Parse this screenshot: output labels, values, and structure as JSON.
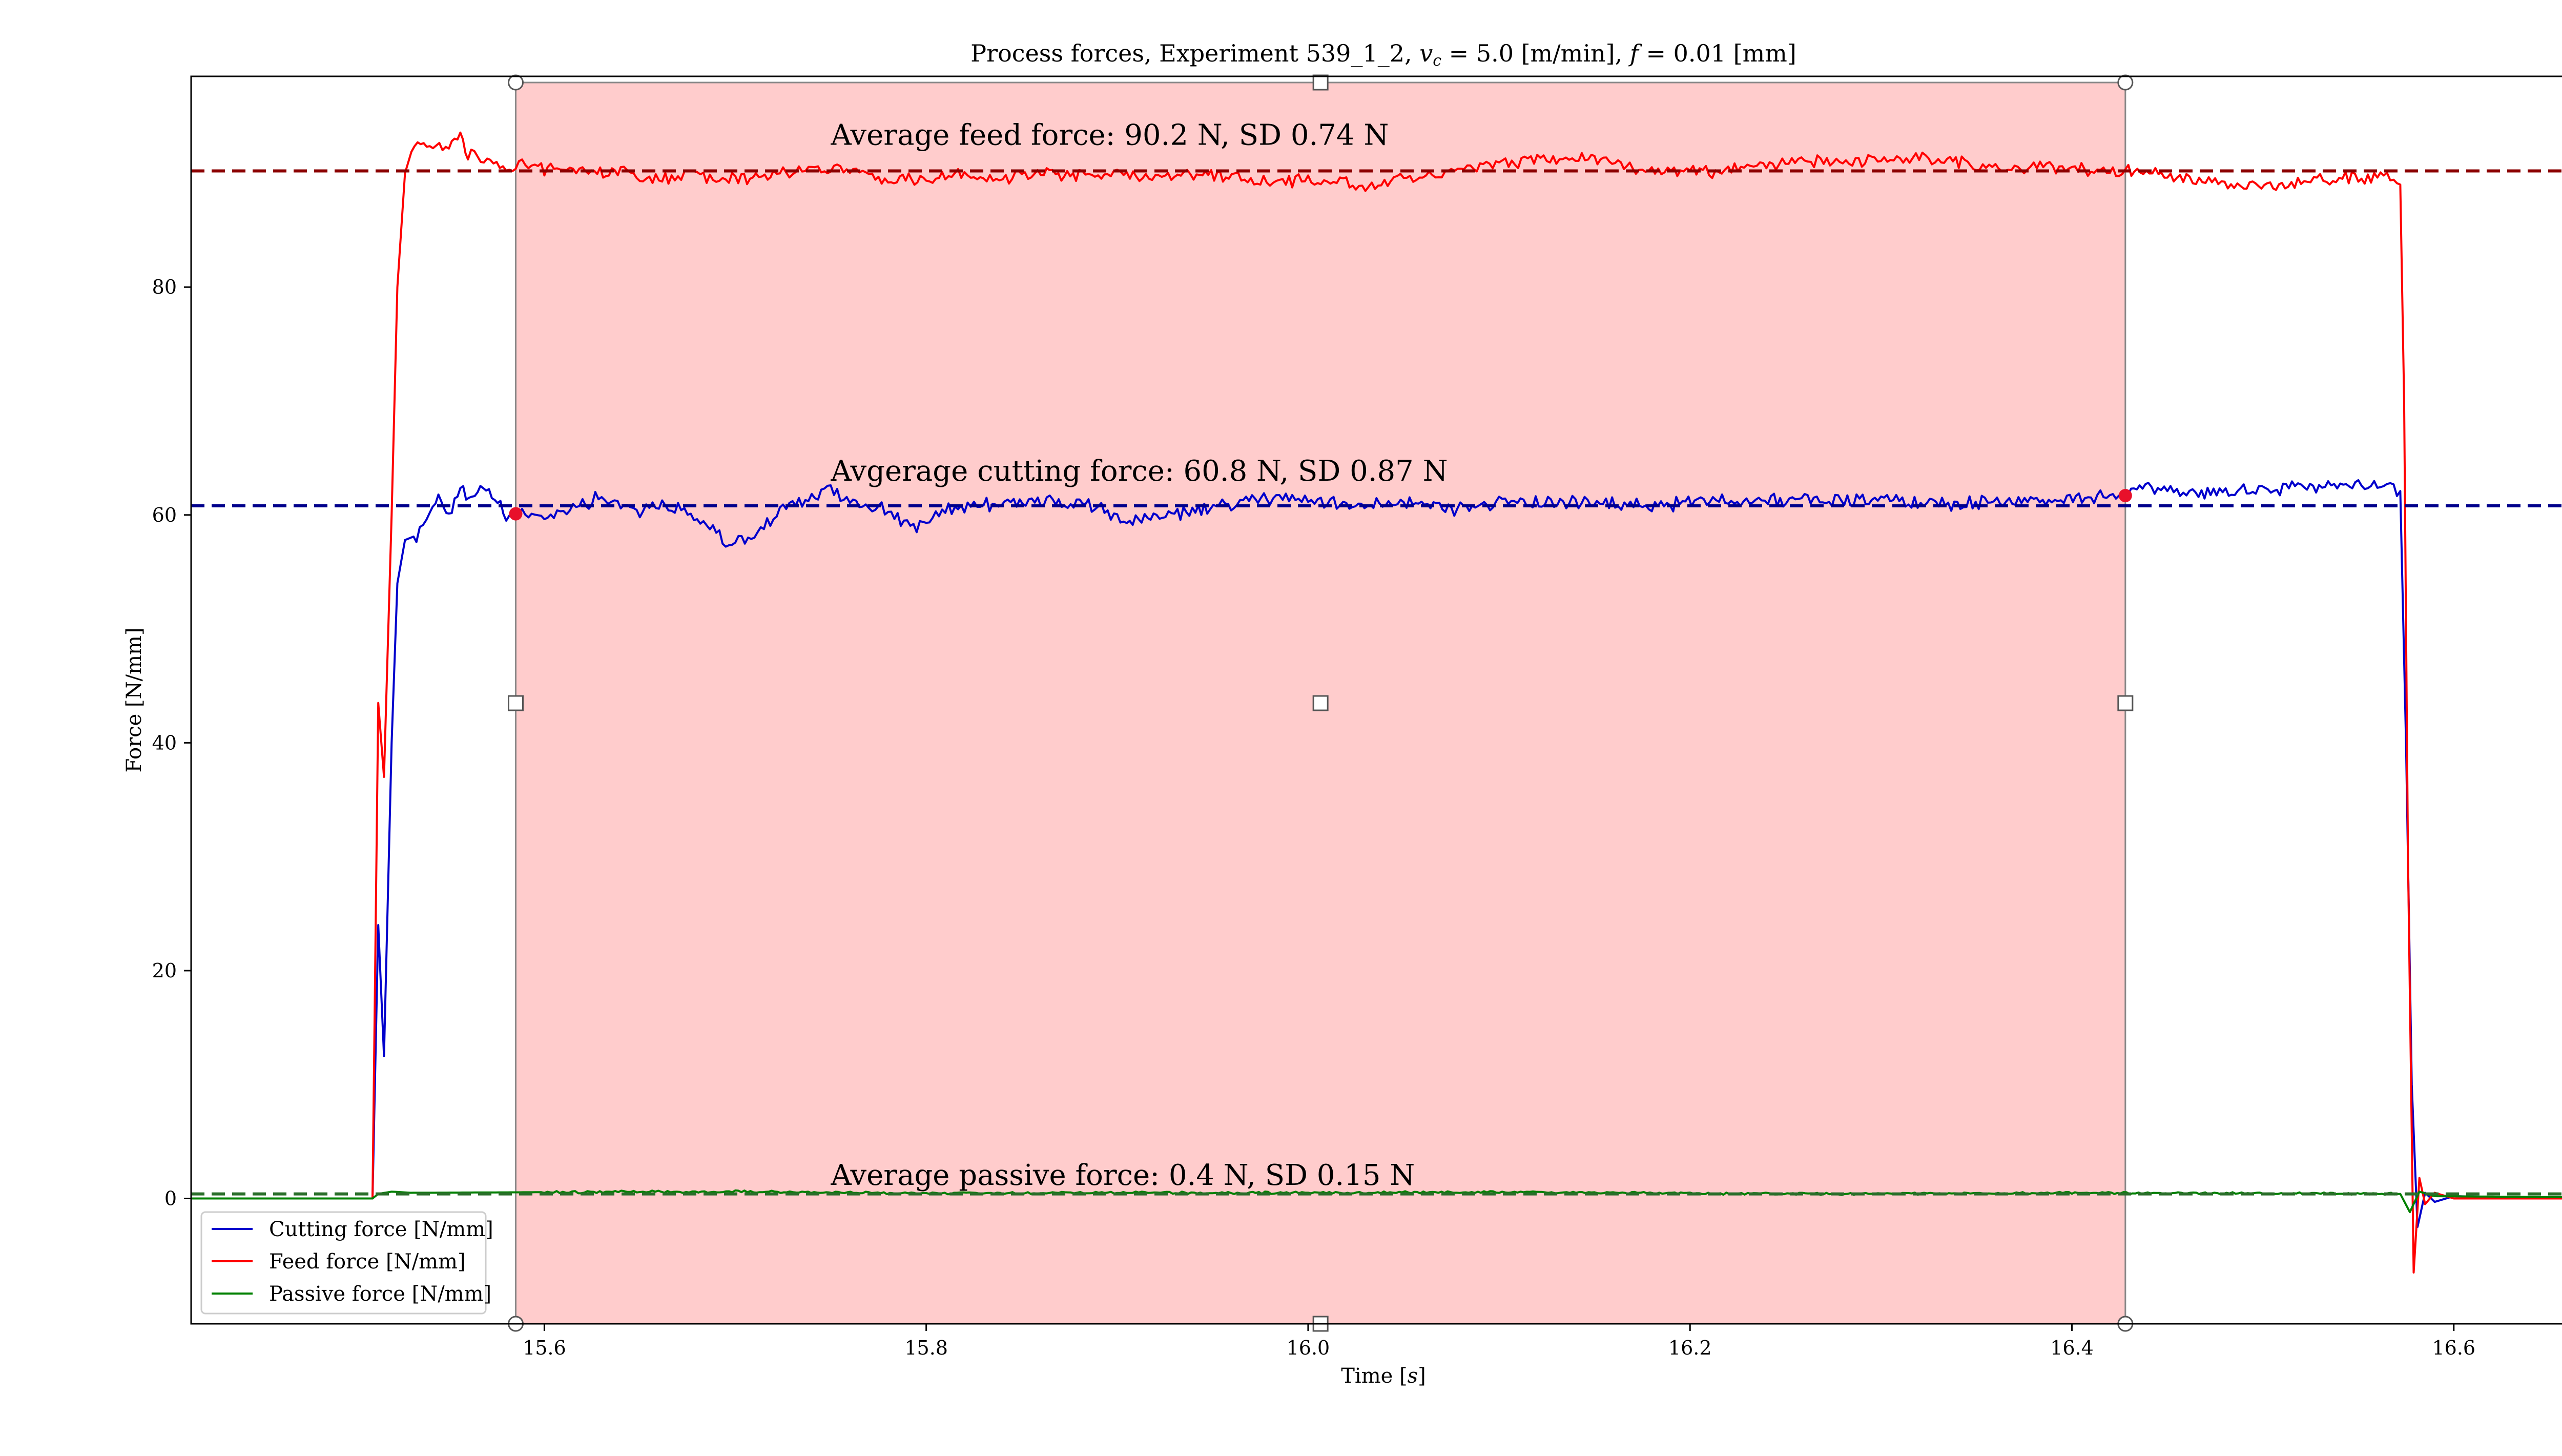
{
  "chart_data": {
    "type": "line",
    "title": "Process forces, Experiment 539_1_2, vₑ = 5.0 [m/min], f = 0.01 [mm]",
    "title_parts": {
      "prefix": "Process forces, Experiment 539_1_2, ",
      "vc_symbol": "v",
      "vc_subscript": "c",
      "vc_value": " = 5.0 [m/min], ",
      "f_symbol": "f",
      "f_value": " = 0.01 [mm]"
    },
    "xlabel": "Time [s]",
    "xlabel_parts": {
      "text": "Time [",
      "unit": "s",
      "close": "]"
    },
    "ylabel": "Force [N/mm]",
    "xlim": [
      15.415,
      16.665
    ],
    "ylim": [
      -11,
      98.5
    ],
    "x_ticks": [
      15.6,
      15.8,
      16.0,
      16.2,
      16.4,
      16.6
    ],
    "x_tick_labels": [
      "15.6",
      "15.8",
      "16.0",
      "16.2",
      "16.4",
      "16.6"
    ],
    "y_ticks": [
      0,
      20,
      40,
      60,
      80
    ],
    "y_tick_labels": [
      "0",
      "20",
      "40",
      "60",
      "80"
    ],
    "grid": false,
    "legend_position": "lower-left",
    "highlight_region": {
      "x_start": 15.585,
      "x_end": 16.428,
      "color": "#ff9a9a"
    },
    "colors": {
      "cutting": "#0000cc",
      "feed": "#ff0000",
      "passive": "#008000",
      "mean_cutting": "#00008b",
      "mean_feed": "#8b0000",
      "marker": "#e8102a"
    },
    "series": [
      {
        "key": "cutting",
        "name": "Cutting force [N/mm]",
        "color": "#0000cc",
        "mean": 60.8,
        "points": [
          [
            15.415,
            0
          ],
          [
            15.51,
            0
          ],
          [
            15.513,
            24
          ],
          [
            15.516,
            12.5
          ],
          [
            15.52,
            40
          ],
          [
            15.523,
            54
          ],
          [
            15.527,
            57.8
          ],
          [
            15.533,
            58.2
          ],
          [
            15.54,
            60.5
          ],
          [
            15.546,
            61.5
          ],
          [
            15.55,
            60
          ],
          [
            15.556,
            62.5
          ],
          [
            15.562,
            61
          ],
          [
            15.568,
            62.3
          ],
          [
            15.574,
            61.5
          ],
          [
            15.58,
            59.8
          ],
          [
            15.585,
            60.1
          ],
          [
            15.6,
            59.8
          ],
          [
            15.615,
            60.8
          ],
          [
            15.63,
            61.5
          ],
          [
            15.65,
            60.5
          ],
          [
            15.665,
            60.8
          ],
          [
            15.68,
            59.8
          ],
          [
            15.695,
            57.5
          ],
          [
            15.71,
            58.2
          ],
          [
            15.725,
            60.5
          ],
          [
            15.74,
            61.5
          ],
          [
            15.75,
            62.2
          ],
          [
            15.765,
            61
          ],
          [
            15.78,
            60.5
          ],
          [
            15.795,
            58.6
          ],
          [
            15.81,
            60.5
          ],
          [
            15.83,
            61
          ],
          [
            15.86,
            61.2
          ],
          [
            15.885,
            60.8
          ],
          [
            15.905,
            59.5
          ],
          [
            15.93,
            60
          ],
          [
            15.955,
            60.8
          ],
          [
            15.98,
            61.5
          ],
          [
            16.0,
            61.3
          ],
          [
            16.02,
            60.8
          ],
          [
            16.05,
            61.3
          ],
          [
            16.075,
            60.5
          ],
          [
            16.1,
            61.2
          ],
          [
            16.14,
            61
          ],
          [
            16.18,
            60.8
          ],
          [
            16.22,
            61.4
          ],
          [
            16.26,
            61.3
          ],
          [
            16.3,
            61.4
          ],
          [
            16.34,
            61
          ],
          [
            16.38,
            61.3
          ],
          [
            16.41,
            61.5
          ],
          [
            16.428,
            61.7
          ],
          [
            16.44,
            62.3
          ],
          [
            16.46,
            61.8
          ],
          [
            16.49,
            62.2
          ],
          [
            16.52,
            62.5
          ],
          [
            16.55,
            62.6
          ],
          [
            16.565,
            62.9
          ],
          [
            16.572,
            62.1
          ],
          [
            16.575,
            40
          ],
          [
            16.578,
            10
          ],
          [
            16.581,
            -2.5
          ],
          [
            16.585,
            0.5
          ],
          [
            16.59,
            -0.3
          ],
          [
            16.6,
            0.2
          ],
          [
            16.665,
            0
          ]
        ]
      },
      {
        "key": "feed",
        "name": "Feed force [N/mm]",
        "color": "#ff0000",
        "mean": 90.2,
        "points": [
          [
            15.415,
            0
          ],
          [
            15.51,
            0
          ],
          [
            15.513,
            43.5
          ],
          [
            15.516,
            37
          ],
          [
            15.52,
            60
          ],
          [
            15.523,
            80
          ],
          [
            15.527,
            90
          ],
          [
            15.532,
            92.8
          ],
          [
            15.54,
            92.6
          ],
          [
            15.55,
            92.4
          ],
          [
            15.556,
            93.3
          ],
          [
            15.56,
            91.6
          ],
          [
            15.57,
            91.3
          ],
          [
            15.58,
            90.4
          ],
          [
            15.59,
            90.9
          ],
          [
            15.605,
            90.2
          ],
          [
            15.62,
            90.3
          ],
          [
            15.64,
            90.1
          ],
          [
            15.66,
            89.5
          ],
          [
            15.68,
            89.8
          ],
          [
            15.7,
            89.5
          ],
          [
            15.72,
            89.7
          ],
          [
            15.74,
            90.5
          ],
          [
            15.76,
            90.3
          ],
          [
            15.78,
            89.4
          ],
          [
            15.8,
            89.3
          ],
          [
            15.82,
            89.8
          ],
          [
            15.84,
            89.6
          ],
          [
            15.86,
            90
          ],
          [
            15.88,
            89.7
          ],
          [
            15.9,
            90
          ],
          [
            15.92,
            89.5
          ],
          [
            15.94,
            90.1
          ],
          [
            15.96,
            89.7
          ],
          [
            15.98,
            89.1
          ],
          [
            16.0,
            89.4
          ],
          [
            16.02,
            89.2
          ],
          [
            16.035,
            88.5
          ],
          [
            16.05,
            89.6
          ],
          [
            16.07,
            90.1
          ],
          [
            16.09,
            90.7
          ],
          [
            16.11,
            91
          ],
          [
            16.13,
            91.1
          ],
          [
            16.15,
            91.2
          ],
          [
            16.17,
            90.5
          ],
          [
            16.19,
            90.3
          ],
          [
            16.21,
            90.1
          ],
          [
            16.23,
            90.5
          ],
          [
            16.25,
            90.8
          ],
          [
            16.27,
            91.1
          ],
          [
            16.29,
            91.1
          ],
          [
            16.31,
            91.4
          ],
          [
            16.33,
            91.1
          ],
          [
            16.35,
            90.8
          ],
          [
            16.37,
            90.5
          ],
          [
            16.39,
            90.6
          ],
          [
            16.41,
            90.3
          ],
          [
            16.428,
            90.2
          ],
          [
            16.45,
            89.8
          ],
          [
            16.47,
            89.3
          ],
          [
            16.49,
            89
          ],
          [
            16.51,
            88.8
          ],
          [
            16.53,
            89.5
          ],
          [
            16.55,
            89.6
          ],
          [
            16.565,
            89.8
          ],
          [
            16.572,
            89
          ],
          [
            16.574,
            70
          ],
          [
            16.576,
            30
          ],
          [
            16.579,
            -6.5
          ],
          [
            16.582,
            1.8
          ],
          [
            16.585,
            -0.5
          ],
          [
            16.59,
            0.5
          ],
          [
            16.6,
            0
          ],
          [
            16.665,
            0
          ]
        ]
      },
      {
        "key": "passive",
        "name": "Passive force [N/mm]",
        "color": "#008000",
        "mean": 0.4,
        "points": [
          [
            15.415,
            0
          ],
          [
            15.51,
            0
          ],
          [
            15.513,
            0.4
          ],
          [
            15.52,
            0.6
          ],
          [
            15.53,
            0.5
          ],
          [
            15.6,
            0.55
          ],
          [
            15.7,
            0.6
          ],
          [
            15.8,
            0.45
          ],
          [
            15.9,
            0.5
          ],
          [
            16.0,
            0.5
          ],
          [
            16.1,
            0.55
          ],
          [
            16.2,
            0.45
          ],
          [
            16.3,
            0.4
          ],
          [
            16.4,
            0.5
          ],
          [
            16.5,
            0.45
          ],
          [
            16.572,
            0.4
          ],
          [
            16.577,
            -1.2
          ],
          [
            16.582,
            0.6
          ],
          [
            16.59,
            0.2
          ],
          [
            16.665,
            0.1
          ]
        ]
      }
    ],
    "annotations": {
      "feed": "Average feed force: 90.2 N, SD 0.74 N",
      "cutting": "Avgerage cutting force: 60.8 N, SD 0.87 N",
      "passive": "Average passive force: 0.4 N, SD 0.15 N"
    },
    "annotation_x": 15.75,
    "annotation_y": {
      "feed": 92.5,
      "cutting": 63,
      "passive": 1.2
    },
    "selection_markers": [
      [
        15.585,
        60.1
      ],
      [
        16.428,
        61.7
      ]
    ]
  }
}
